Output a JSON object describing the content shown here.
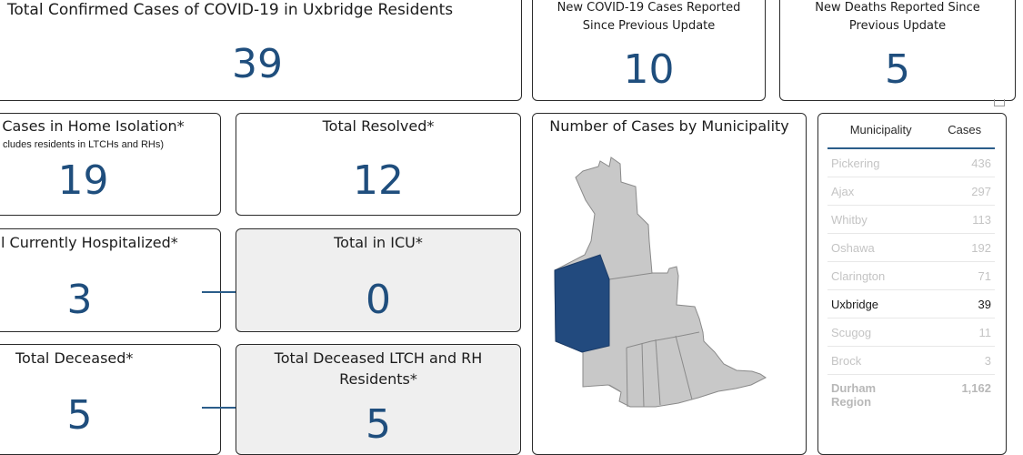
{
  "cards": {
    "total_confirmed": {
      "title": "Total Confirmed Cases of COVID-19 in Uxbridge Residents",
      "value": "39"
    },
    "new_cases": {
      "title_line1": "New COVID-19 Cases Reported",
      "title_line2": "Since Previous Update",
      "value": "10"
    },
    "new_deaths": {
      "title_line1": "New Deaths Reported Since",
      "title_line2": "Previous Update",
      "value": "5"
    },
    "home_isolation": {
      "title": "Cases in Home Isolation*",
      "note": "cludes residents in LTCHs and RHs)",
      "value": "19"
    },
    "resolved": {
      "title": "Total Resolved*",
      "value": "12"
    },
    "hospitalized": {
      "title": "l Currently Hospitalized*",
      "value": "3"
    },
    "icu": {
      "title": "Total in ICU*",
      "value": "0"
    },
    "deceased": {
      "title": "Total Deceased*",
      "value": "5"
    },
    "deceased_ltch": {
      "title_line1": "Total Deceased LTCH and RH",
      "title_line2": "Residents*",
      "value": "5"
    }
  },
  "map": {
    "title": "Number of Cases by Municipality",
    "highlight_color": "#224a7e",
    "base_color": "#c8c8c8"
  },
  "table": {
    "headers": {
      "municipality": "Municipality",
      "cases": "Cases"
    },
    "rows": [
      {
        "name": "Pickering",
        "cases": "436",
        "state": "dim"
      },
      {
        "name": "Ajax",
        "cases": "297",
        "state": "dim"
      },
      {
        "name": "Whitby",
        "cases": "113",
        "state": "dim"
      },
      {
        "name": "Oshawa",
        "cases": "192",
        "state": "dim"
      },
      {
        "name": "Clarington",
        "cases": "71",
        "state": "dim"
      },
      {
        "name": "Uxbridge",
        "cases": "39",
        "state": "active"
      },
      {
        "name": "Scugog",
        "cases": "11",
        "state": "dim"
      },
      {
        "name": "Brock",
        "cases": "3",
        "state": "dim"
      }
    ],
    "total": {
      "name_line1": "Durham",
      "name_line2": "Region",
      "cases": "1,162"
    }
  },
  "colors": {
    "value_blue": "#1f4e7d",
    "border": "#2b2b2b",
    "accent_line": "#2b5d8a"
  }
}
